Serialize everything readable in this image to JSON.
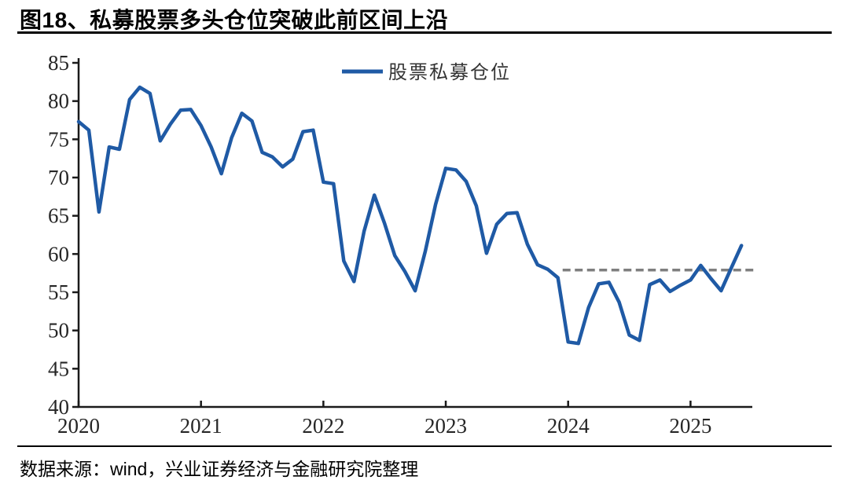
{
  "figure": {
    "title": "图18、私募股票多头仓位突破此前区间上沿",
    "source": "数据来源：wind，兴业证券经济与金融研究院整理"
  },
  "colors": {
    "line_blue": "#1f5aa5",
    "dash_gray": "#7f7f7f",
    "axis": "#1a1a1a",
    "tick_label": "#262626",
    "background": "#ffffff"
  },
  "chart_data": {
    "type": "line",
    "title": "私募股票多头仓位突破此前区间上沿",
    "legend_position": "top-center",
    "grid": false,
    "xlabel": "",
    "ylabel": "",
    "ylim": [
      40,
      85
    ],
    "yticks": [
      40,
      45,
      50,
      55,
      60,
      65,
      70,
      75,
      80,
      85
    ],
    "xticks": [
      "2020",
      "2021",
      "2022",
      "2023",
      "2024",
      "2025"
    ],
    "frequency": "monthly",
    "x_start": "2020-01",
    "series": [
      {
        "name": "股票私募仓位",
        "color": "#1f5aa5",
        "values": [
          77.3,
          76.2,
          65.5,
          74.0,
          73.7,
          80.2,
          81.8,
          81.0,
          74.8,
          77.0,
          78.8,
          78.9,
          76.8,
          74.0,
          70.5,
          75.2,
          78.4,
          77.4,
          73.3,
          72.7,
          71.4,
          72.4,
          76.0,
          76.2,
          69.4,
          69.2,
          59.1,
          56.4,
          63.0,
          67.7,
          64.0,
          59.8,
          57.7,
          55.2,
          60.4,
          66.5,
          71.2,
          71.0,
          69.5,
          66.3,
          60.1,
          63.9,
          65.3,
          65.4,
          61.3,
          58.6,
          58.0,
          56.9,
          48.5,
          48.3,
          53.0,
          56.1,
          56.3,
          53.7,
          49.4,
          48.7,
          56.0,
          56.6,
          55.1,
          55.9,
          56.6,
          58.5,
          56.8,
          55.2,
          58.2,
          61.1
        ]
      }
    ],
    "dashed_reference_line": {
      "value": 57.9,
      "style": "dashed",
      "color": "#7f7f7f",
      "x_start": "2023-12",
      "x_end": "2025-08"
    }
  }
}
